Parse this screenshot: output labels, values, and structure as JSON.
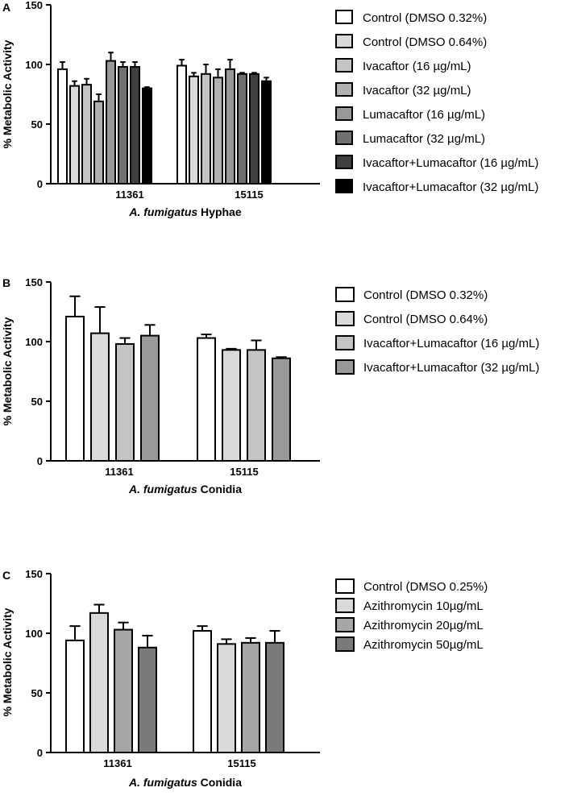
{
  "colors": {
    "axis": "#000000",
    "c1": "#ffffff",
    "c2": "#d9d9d9",
    "c3": "#c4c4c4",
    "c4": "#b0b0b0",
    "c5": "#999999",
    "c6": "#707070",
    "c7": "#404040",
    "c8": "#000000"
  },
  "chart_data": [
    {
      "panel": "A",
      "type": "bar",
      "ylabel": "% Metabolic Activity",
      "xlabel_italic": "A. fumigatus",
      "xlabel_rest": " Hyphae",
      "ylim": [
        0,
        150
      ],
      "yticks": [
        "0",
        "50",
        "100",
        "150"
      ],
      "categories": [
        "11361",
        "15115"
      ],
      "series": [
        {
          "name": "Control (DMSO 0.32%)",
          "color": "#ffffff",
          "values": [
            96,
            99
          ],
          "errors": [
            6,
            5
          ]
        },
        {
          "name": "Control (DMSO 0.64%)",
          "color": "#d9d9d9",
          "values": [
            82,
            90
          ],
          "errors": [
            4,
            3
          ]
        },
        {
          "name": "Ivacaftor (16 µg/mL)",
          "color": "#c4c4c4",
          "values": [
            83,
            92
          ],
          "errors": [
            5,
            8
          ]
        },
        {
          "name": "Ivacaftor (32 µg/mL)",
          "color": "#b0b0b0",
          "values": [
            69,
            89
          ],
          "errors": [
            6,
            7
          ]
        },
        {
          "name": "Lumacaftor (16 µg/mL)",
          "color": "#999999",
          "values": [
            103,
            96
          ],
          "errors": [
            7,
            8
          ]
        },
        {
          "name": "Lumacaftor (32 µg/mL)",
          "color": "#707070",
          "values": [
            98,
            92
          ],
          "errors": [
            4,
            1
          ]
        },
        {
          "name": "Ivacaftor+Lumacaftor (16 µg/mL)",
          "color": "#404040",
          "values": [
            98,
            92
          ],
          "errors": [
            4,
            1
          ]
        },
        {
          "name": "Ivacaftor+Lumacaftor (32 µg/mL)",
          "color": "#000000",
          "values": [
            80,
            86
          ],
          "errors": [
            1,
            3
          ]
        }
      ]
    },
    {
      "panel": "B",
      "type": "bar",
      "ylabel": "% Metabolic Activity",
      "xlabel_italic": "A. fumigatus",
      "xlabel_rest": " Conidia",
      "ylim": [
        0,
        150
      ],
      "yticks": [
        "0",
        "50",
        "100",
        "150"
      ],
      "categories": [
        "11361",
        "15115"
      ],
      "series": [
        {
          "name": "Control (DMSO 0.32%)",
          "color": "#ffffff",
          "values": [
            121,
            103
          ],
          "errors": [
            17,
            3
          ]
        },
        {
          "name": "Control (DMSO 0.64%)",
          "color": "#d9d9d9",
          "values": [
            107,
            93
          ],
          "errors": [
            22,
            1
          ]
        },
        {
          "name": "Ivacaftor+Lumacaftor (16 µg/mL)",
          "color": "#c4c4c4",
          "values": [
            98,
            93
          ],
          "errors": [
            5,
            8
          ]
        },
        {
          "name": "Ivacaftor+Lumacaftor (32 µg/mL)",
          "color": "#999999",
          "values": [
            105,
            86
          ],
          "errors": [
            9,
            1
          ]
        }
      ]
    },
    {
      "panel": "C",
      "type": "bar",
      "ylabel": "% Metabolic Activity",
      "xlabel_italic": "A. fumigatus",
      "xlabel_rest": " Conidia",
      "ylim": [
        0,
        150
      ],
      "yticks": [
        "0",
        "50",
        "100",
        "150"
      ],
      "categories": [
        "11361",
        "15115"
      ],
      "series": [
        {
          "name": "Control (DMSO 0.25%)",
          "color": "#ffffff",
          "values": [
            94,
            102
          ],
          "errors": [
            12,
            4
          ]
        },
        {
          "name": "Azithromycin 10µg/mL",
          "color": "#d9d9d9",
          "values": [
            117,
            91
          ],
          "errors": [
            7,
            4
          ]
        },
        {
          "name": "Azithromycin 20µg/mL",
          "color": "#a6a6a6",
          "values": [
            103,
            92
          ],
          "errors": [
            6,
            4
          ]
        },
        {
          "name": "Azithromycin 50µg/mL",
          "color": "#7a7a7a",
          "values": [
            88,
            92
          ],
          "errors": [
            10,
            10
          ]
        }
      ]
    }
  ]
}
